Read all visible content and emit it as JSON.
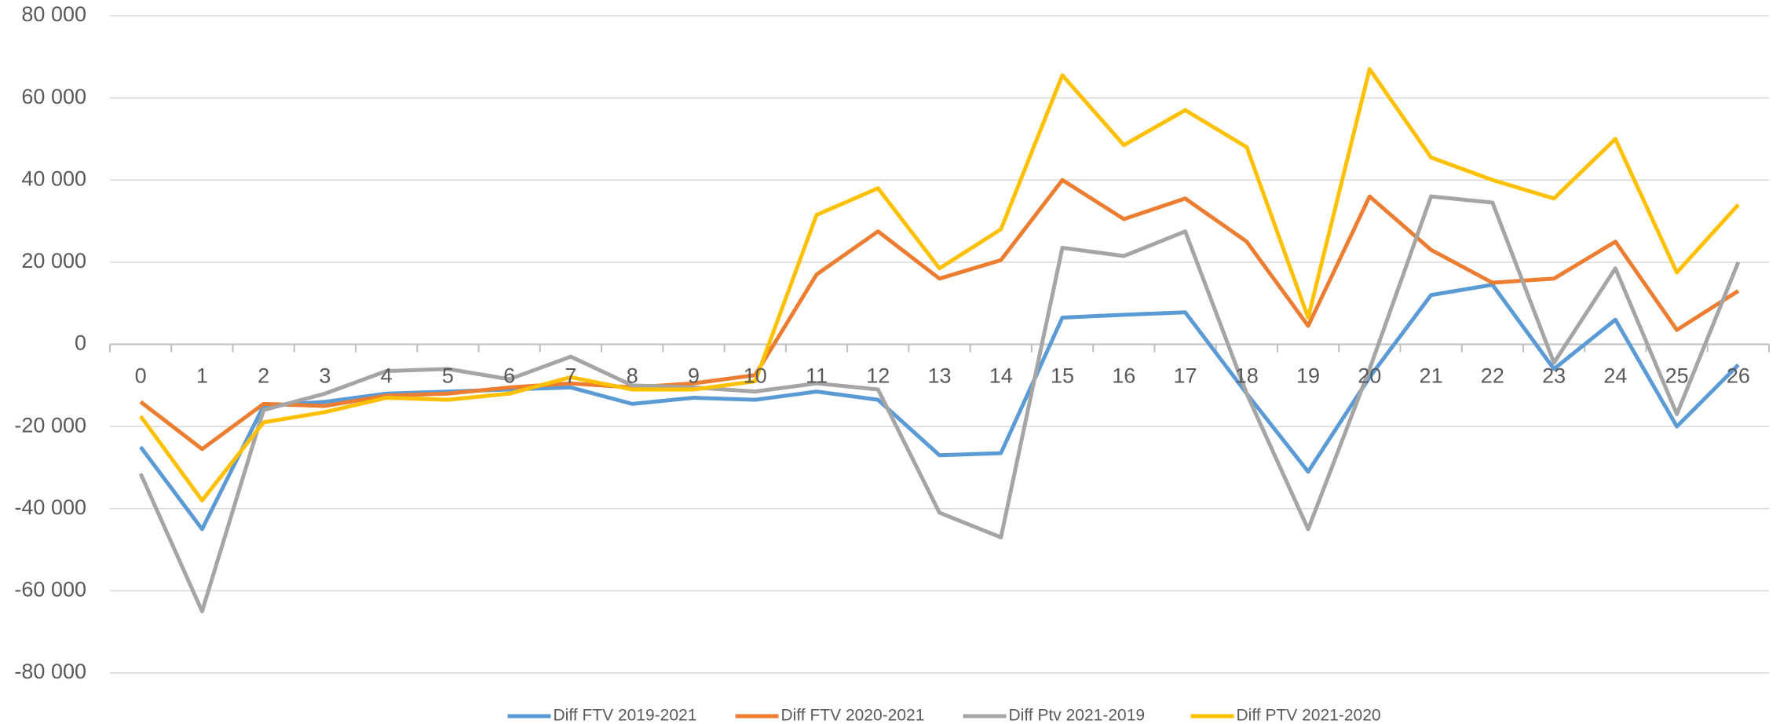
{
  "chart_data": {
    "type": "line",
    "categories": [
      "0",
      "1",
      "2",
      "3",
      "4",
      "5",
      "6",
      "7",
      "8",
      "9",
      "10",
      "11",
      "12",
      "13",
      "14",
      "15",
      "16",
      "17",
      "18",
      "19",
      "20",
      "21",
      "22",
      "23",
      "24",
      "25",
      "26"
    ],
    "series": [
      {
        "name": "Diff FTV 2019-2021",
        "color": "#5b9bd5",
        "values": [
          -25000,
          -45000,
          -15000,
          -14000,
          -12000,
          -11500,
          -11000,
          -10500,
          -14500,
          -13000,
          -13500,
          -11500,
          -13500,
          -27000,
          -26500,
          6500,
          7200,
          7800,
          -12000,
          -31000,
          -8000,
          12000,
          14500,
          -6000,
          6000,
          -20000,
          -5000
        ]
      },
      {
        "name": "Diff FTV 2020-2021",
        "color": "#ed7d31",
        "values": [
          -14000,
          -25500,
          -14500,
          -15000,
          -12500,
          -12000,
          -10500,
          -9500,
          -10500,
          -9500,
          -7500,
          17000,
          27500,
          16000,
          20500,
          40000,
          30500,
          35500,
          25000,
          4500,
          36000,
          23000,
          15000,
          16000,
          25000,
          3500,
          13000
        ]
      },
      {
        "name": "Diff Ptv 2021-2019",
        "color": "#a5a5a5",
        "values": [
          -31500,
          -65000,
          -16000,
          -12000,
          -6500,
          -6000,
          -8500,
          -3000,
          -10000,
          -10500,
          -11500,
          -9500,
          -11000,
          -41000,
          -47000,
          23500,
          21500,
          27500,
          -12000,
          -45000,
          -6000,
          36000,
          34500,
          -4500,
          18500,
          -17000,
          20000
        ]
      },
      {
        "name": "Diff PTV 2021-2020",
        "color": "#ffc000",
        "values": [
          -17500,
          -38000,
          -19000,
          -16500,
          -13000,
          -13500,
          -12000,
          -8000,
          -11000,
          -11000,
          -9000,
          31500,
          38000,
          18500,
          28000,
          65500,
          48500,
          57000,
          48000,
          6500,
          67000,
          45500,
          40000,
          35500,
          50000,
          17500,
          34000
        ]
      }
    ],
    "ylim": [
      -80000,
      80000
    ],
    "yticks": [
      {
        "value": -80000,
        "label": "-80 000"
      },
      {
        "value": -60000,
        "label": "-60 000"
      },
      {
        "value": -40000,
        "label": "-40 000"
      },
      {
        "value": -20000,
        "label": "-20 000"
      },
      0,
      {
        "value": 20000,
        "label": "20 000"
      },
      {
        "value": 40000,
        "label": "40 000"
      },
      {
        "value": 60000,
        "label": "60 000"
      },
      {
        "value": 80000,
        "label": "80 000"
      }
    ],
    "grid": true,
    "legend": "bottom"
  }
}
